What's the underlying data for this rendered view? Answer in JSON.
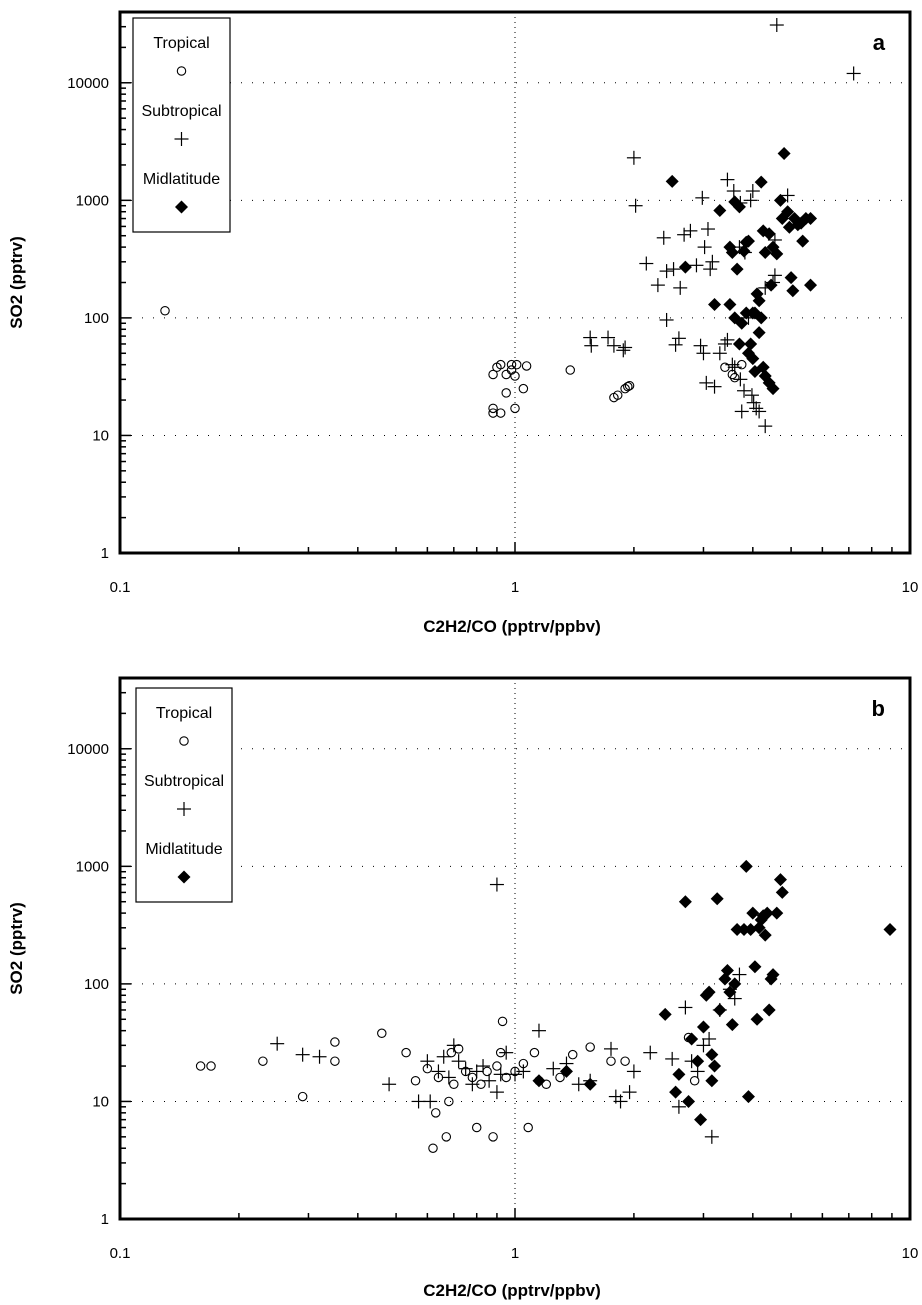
{
  "chart_data": [
    {
      "type": "scatter",
      "panel_label": "a",
      "xlabel": "C2H2/CO (pptrv/ppbv)",
      "ylabel": "SO2 (pptrv)",
      "x_scale": "log",
      "y_scale": "log",
      "xlim": [
        0.1,
        10
      ],
      "ylim": [
        1,
        40000
      ],
      "x_ticks": [
        0.1,
        1,
        10
      ],
      "x_tick_labels": [
        "0.1",
        "1",
        "10"
      ],
      "y_ticks": [
        1,
        10,
        100,
        1000,
        10000
      ],
      "y_tick_labels": [
        "1",
        "10",
        "100",
        "1000",
        "10000"
      ],
      "gridlines": "dotted at major ticks",
      "legend_position": "top-left",
      "series": [
        {
          "name": "Tropical",
          "marker": "open-circle",
          "points": [
            [
              0.13,
              115
            ],
            [
              0.88,
              33
            ],
            [
              0.9,
              38
            ],
            [
              0.92,
              40
            ],
            [
              0.95,
              33
            ],
            [
              0.98,
              40
            ],
            [
              0.98,
              36
            ],
            [
              1.0,
              32
            ],
            [
              1.01,
              40
            ],
            [
              1.07,
              39
            ],
            [
              0.88,
              17
            ],
            [
              0.88,
              15.5
            ],
            [
              0.92,
              15.5
            ],
            [
              0.95,
              23
            ],
            [
              1.0,
              17
            ],
            [
              1.05,
              25
            ],
            [
              1.38,
              36
            ],
            [
              1.78,
              21
            ],
            [
              1.82,
              22
            ],
            [
              1.9,
              25
            ],
            [
              1.93,
              26
            ],
            [
              1.95,
              26.5
            ],
            [
              3.4,
              38
            ],
            [
              3.55,
              33
            ],
            [
              3.6,
              31
            ],
            [
              3.75,
              40
            ]
          ]
        },
        {
          "name": "Subtropical",
          "marker": "plus",
          "points": [
            [
              4.6,
              31000
            ],
            [
              7.2,
              12000
            ],
            [
              2.0,
              2300
            ],
            [
              2.02,
              900
            ],
            [
              2.15,
              290
            ],
            [
              2.3,
              190
            ],
            [
              2.38,
              480
            ],
            [
              2.42,
              250
            ],
            [
              2.52,
              260
            ],
            [
              2.62,
              180
            ],
            [
              2.68,
              510
            ],
            [
              2.78,
              550
            ],
            [
              2.88,
              280
            ],
            [
              2.98,
              1050
            ],
            [
              3.02,
              400
            ],
            [
              3.08,
              570
            ],
            [
              3.12,
              260
            ],
            [
              3.16,
              300
            ],
            [
              3.45,
              1500
            ],
            [
              3.58,
              1200
            ],
            [
              3.7,
              400
            ],
            [
              3.72,
              950
            ],
            [
              3.82,
              360
            ],
            [
              3.95,
              1000
            ],
            [
              4.0,
              1200
            ],
            [
              4.3,
              180
            ],
            [
              4.55,
              460
            ],
            [
              4.9,
              1100
            ],
            [
              2.42,
              96
            ],
            [
              2.6,
              67
            ],
            [
              2.55,
              59
            ],
            [
              2.95,
              58
            ],
            [
              3.0,
              50
            ],
            [
              3.05,
              28
            ],
            [
              3.2,
              26
            ],
            [
              3.3,
              50
            ],
            [
              3.4,
              60
            ],
            [
              3.45,
              65
            ],
            [
              3.55,
              40
            ],
            [
              3.6,
              38
            ],
            [
              3.72,
              30
            ],
            [
              3.75,
              16
            ],
            [
              3.8,
              24
            ],
            [
              3.9,
              100
            ],
            [
              3.98,
              22
            ],
            [
              4.02,
              19
            ],
            [
              4.08,
              17
            ],
            [
              4.15,
              16
            ],
            [
              4.3,
              12
            ],
            [
              4.5,
              200
            ],
            [
              4.55,
              230
            ],
            [
              1.55,
              68
            ],
            [
              1.56,
              58
            ],
            [
              1.72,
              68
            ],
            [
              1.78,
              58
            ],
            [
              1.88,
              53
            ],
            [
              1.9,
              56
            ]
          ]
        },
        {
          "name": "Midlatitude",
          "marker": "filled-diamond",
          "points": [
            [
              2.5,
              1450
            ],
            [
              2.7,
              270
            ],
            [
              3.2,
              130
            ],
            [
              3.3,
              820
            ],
            [
              3.5,
              400
            ],
            [
              3.55,
              360
            ],
            [
              3.6,
              970
            ],
            [
              3.65,
              260
            ],
            [
              3.7,
              880
            ],
            [
              3.8,
              370
            ],
            [
              3.85,
              440
            ],
            [
              3.9,
              450
            ],
            [
              4.0,
              110
            ],
            [
              4.05,
              110
            ],
            [
              4.1,
              160
            ],
            [
              4.15,
              140
            ],
            [
              4.2,
              1430
            ],
            [
              4.25,
              550
            ],
            [
              4.3,
              360
            ],
            [
              4.4,
              520
            ],
            [
              4.45,
              190
            ],
            [
              4.5,
              400
            ],
            [
              4.6,
              350
            ],
            [
              4.7,
              1000
            ],
            [
              4.75,
              700
            ],
            [
              4.8,
              2500
            ],
            [
              4.9,
              800
            ],
            [
              4.95,
              590
            ],
            [
              5.0,
              220
            ],
            [
              5.05,
              170
            ],
            [
              5.1,
              700
            ],
            [
              5.2,
              620
            ],
            [
              5.3,
              640
            ],
            [
              5.35,
              450
            ],
            [
              5.45,
              700
            ],
            [
              5.6,
              700
            ],
            [
              5.6,
              190
            ],
            [
              3.5,
              130
            ],
            [
              3.6,
              100
            ],
            [
              3.7,
              60
            ],
            [
              3.75,
              90
            ],
            [
              3.85,
              110
            ],
            [
              3.9,
              50
            ],
            [
              3.95,
              60
            ],
            [
              4.0,
              45
            ],
            [
              4.05,
              35
            ],
            [
              4.15,
              75
            ],
            [
              4.2,
              100
            ],
            [
              4.25,
              38
            ],
            [
              4.3,
              32
            ],
            [
              4.4,
              28
            ],
            [
              4.5,
              25
            ]
          ]
        }
      ]
    },
    {
      "type": "scatter",
      "panel_label": "b",
      "xlabel": "C2H2/CO (pptrv/ppbv)",
      "ylabel": "SO2 (pptrv)",
      "x_scale": "log",
      "y_scale": "log",
      "xlim": [
        0.1,
        10
      ],
      "ylim": [
        1,
        40000
      ],
      "x_ticks": [
        0.1,
        1,
        10
      ],
      "x_tick_labels": [
        "0.1",
        "1",
        "10"
      ],
      "y_ticks": [
        1,
        10,
        100,
        1000,
        10000
      ],
      "y_tick_labels": [
        "1",
        "10",
        "100",
        "1000",
        "10000"
      ],
      "gridlines": "dotted at major ticks",
      "legend_position": "top-left",
      "series": [
        {
          "name": "Tropical",
          "marker": "open-circle",
          "points": [
            [
              0.16,
              20
            ],
            [
              0.17,
              20
            ],
            [
              0.23,
              22
            ],
            [
              0.29,
              11
            ],
            [
              0.35,
              32
            ],
            [
              0.35,
              22
            ],
            [
              0.46,
              38
            ],
            [
              0.53,
              26
            ],
            [
              0.56,
              15
            ],
            [
              0.6,
              19
            ],
            [
              0.62,
              4
            ],
            [
              0.63,
              8
            ],
            [
              0.64,
              16
            ],
            [
              0.67,
              5
            ],
            [
              0.68,
              10
            ],
            [
              0.69,
              26
            ],
            [
              0.7,
              14
            ],
            [
              0.72,
              28
            ],
            [
              0.75,
              18
            ],
            [
              0.78,
              16
            ],
            [
              0.8,
              6
            ],
            [
              0.82,
              14
            ],
            [
              0.85,
              18
            ],
            [
              0.88,
              5
            ],
            [
              0.9,
              20
            ],
            [
              0.92,
              26
            ],
            [
              0.93,
              48
            ],
            [
              0.95,
              16
            ],
            [
              1.0,
              18
            ],
            [
              1.05,
              21
            ],
            [
              1.08,
              6
            ],
            [
              1.12,
              26
            ],
            [
              1.15,
              15
            ],
            [
              1.2,
              14
            ],
            [
              1.3,
              16
            ],
            [
              1.4,
              25
            ],
            [
              1.55,
              29
            ],
            [
              1.75,
              22
            ],
            [
              1.9,
              22
            ],
            [
              2.75,
              35
            ],
            [
              2.85,
              15
            ]
          ]
        },
        {
          "name": "Subtropical",
          "marker": "plus",
          "points": [
            [
              0.25,
              31
            ],
            [
              0.29,
              25
            ],
            [
              0.32,
              24
            ],
            [
              0.48,
              14
            ],
            [
              0.57,
              10
            ],
            [
              0.61,
              10
            ],
            [
              0.6,
              22
            ],
            [
              0.64,
              18
            ],
            [
              0.66,
              24
            ],
            [
              0.68,
              16
            ],
            [
              0.7,
              30
            ],
            [
              0.72,
              22
            ],
            [
              0.75,
              19
            ],
            [
              0.78,
              14
            ],
            [
              0.8,
              18
            ],
            [
              0.83,
              20
            ],
            [
              0.86,
              15
            ],
            [
              0.9,
              700
            ],
            [
              0.9,
              12
            ],
            [
              0.92,
              17
            ],
            [
              0.95,
              26
            ],
            [
              1.0,
              17
            ],
            [
              1.05,
              18
            ],
            [
              1.15,
              40
            ],
            [
              1.25,
              19
            ],
            [
              1.35,
              21
            ],
            [
              1.45,
              14
            ],
            [
              1.55,
              15
            ],
            [
              1.75,
              28
            ],
            [
              1.8,
              11
            ],
            [
              1.85,
              10
            ],
            [
              1.95,
              12
            ],
            [
              2.0,
              18
            ],
            [
              2.2,
              26
            ],
            [
              2.5,
              23
            ],
            [
              2.6,
              9
            ],
            [
              2.7,
              63
            ],
            [
              2.8,
              22
            ],
            [
              2.9,
              18
            ],
            [
              3.0,
              30
            ],
            [
              3.1,
              34
            ],
            [
              3.15,
              5
            ],
            [
              3.3,
              60
            ],
            [
              3.5,
              90
            ],
            [
              3.6,
              75
            ],
            [
              3.7,
              120
            ]
          ]
        },
        {
          "name": "Midlatitude",
          "marker": "filled-diamond",
          "points": [
            [
              1.15,
              15
            ],
            [
              1.35,
              18
            ],
            [
              1.55,
              14
            ],
            [
              2.4,
              55
            ],
            [
              2.55,
              12
            ],
            [
              2.6,
              17
            ],
            [
              2.7,
              500
            ],
            [
              2.75,
              10
            ],
            [
              2.8,
              34
            ],
            [
              2.9,
              22
            ],
            [
              2.95,
              7
            ],
            [
              3.0,
              43
            ],
            [
              3.05,
              80
            ],
            [
              3.1,
              85
            ],
            [
              3.15,
              15
            ],
            [
              3.15,
              25
            ],
            [
              3.2,
              20
            ],
            [
              3.25,
              530
            ],
            [
              3.3,
              60
            ],
            [
              3.4,
              110
            ],
            [
              3.45,
              130
            ],
            [
              3.5,
              85
            ],
            [
              3.55,
              45
            ],
            [
              3.6,
              100
            ],
            [
              3.65,
              290
            ],
            [
              3.8,
              290
            ],
            [
              3.85,
              1000
            ],
            [
              3.9,
              11
            ],
            [
              3.95,
              290
            ],
            [
              4.0,
              400
            ],
            [
              4.05,
              140
            ],
            [
              4.1,
              50
            ],
            [
              4.15,
              300
            ],
            [
              4.2,
              350
            ],
            [
              4.25,
              380
            ],
            [
              4.3,
              260
            ],
            [
              4.35,
              400
            ],
            [
              4.4,
              60
            ],
            [
              4.45,
              110
            ],
            [
              4.5,
              120
            ],
            [
              4.6,
              400
            ],
            [
              4.7,
              770
            ],
            [
              4.75,
              600
            ],
            [
              8.9,
              290
            ]
          ]
        }
      ]
    }
  ]
}
